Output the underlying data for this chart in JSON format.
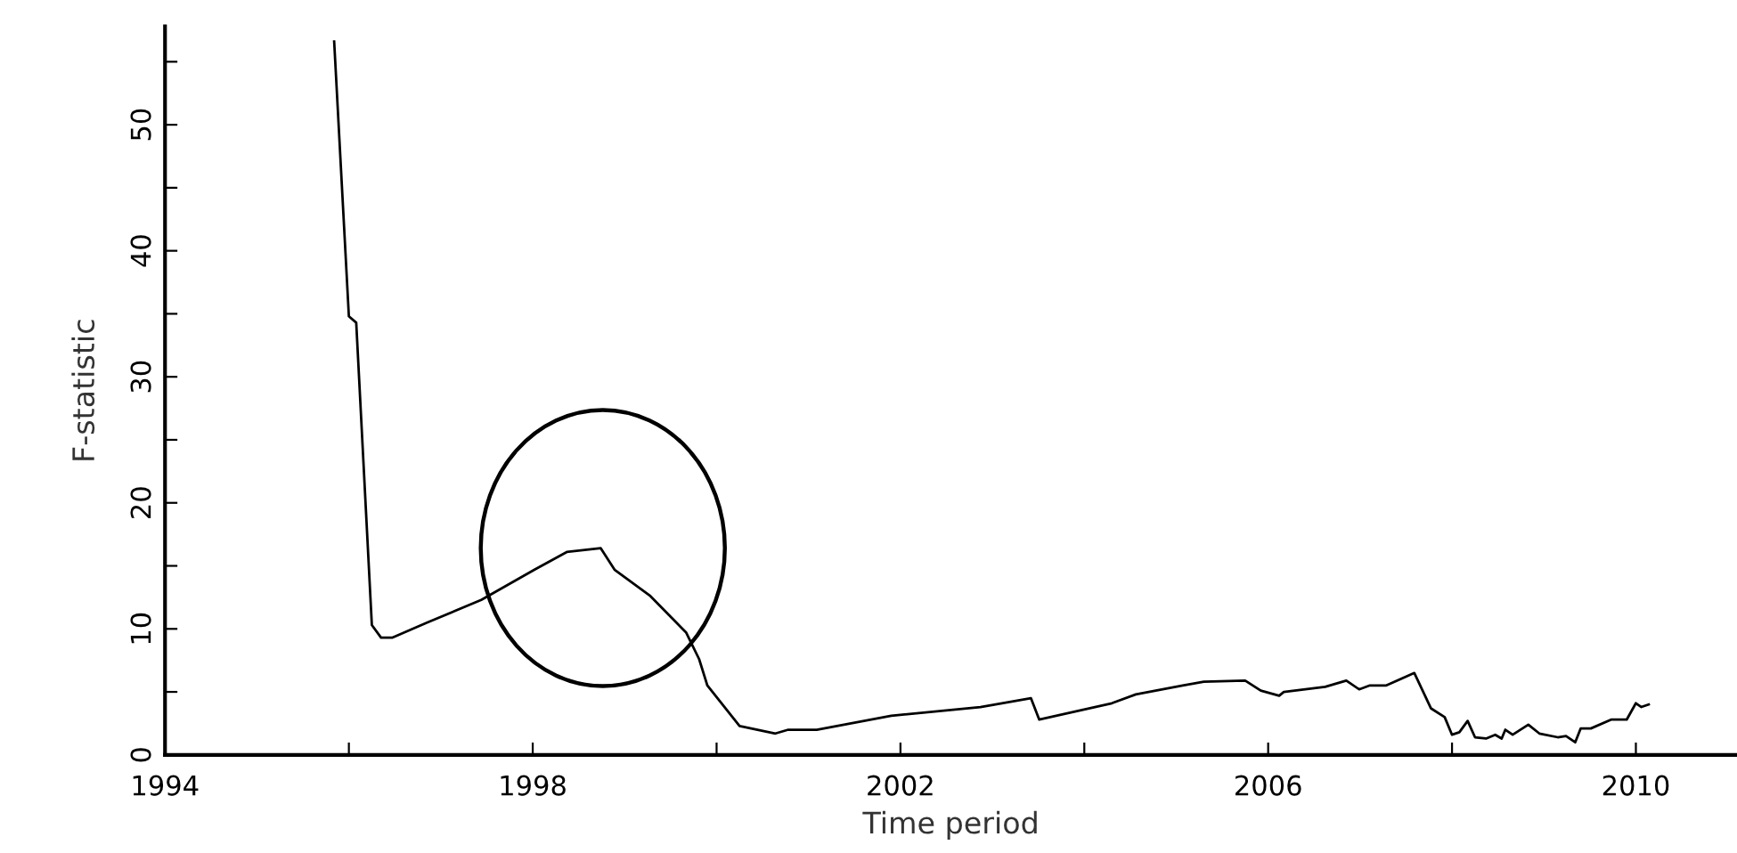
{
  "chart_data": {
    "type": "line",
    "xlabel": "Time period",
    "ylabel": "F-statistic",
    "xlim": [
      1994,
      2011.1
    ],
    "ylim": [
      0,
      57.8
    ],
    "xticks": [
      1994,
      {
        "value": 1996,
        "label": null
      },
      1998,
      {
        "value": 2000,
        "label": null
      },
      2002,
      {
        "value": 2004,
        "label": null
      },
      2006,
      {
        "value": 2008,
        "label": null
      },
      2010
    ],
    "yticks": [
      0,
      {
        "value": 5,
        "label": null
      },
      10,
      {
        "value": 15,
        "label": null
      },
      20,
      {
        "value": 25,
        "label": null
      },
      30,
      {
        "value": 35,
        "label": null
      },
      40,
      {
        "value": 45,
        "label": null
      },
      50,
      {
        "value": 55,
        "label": null
      }
    ],
    "grid": false,
    "legend": false,
    "marker": "none",
    "line_style": "solid",
    "series": [
      {
        "color": "#000000",
        "x": [
          1995.84,
          1996.0,
          1996.08,
          1996.25,
          1996.35,
          1996.47,
          1996.85,
          1997.44,
          1998.02,
          1998.37,
          1998.74,
          1998.89,
          1999.28,
          1999.67,
          1999.81,
          1999.9,
          2000.25,
          2000.64,
          2000.78,
          2001.09,
          2001.9,
          2002.87,
          2003.42,
          2003.51,
          2004.3,
          2004.56,
          2005.07,
          2005.3,
          2005.75,
          2005.92,
          2006.12,
          2006.17,
          2006.62,
          2006.85,
          2006.99,
          2007.1,
          2007.28,
          2007.59,
          2007.77,
          2007.92,
          2008.0,
          2008.08,
          2008.17,
          2008.25,
          2008.37,
          2008.47,
          2008.54,
          2008.58,
          2008.66,
          2008.83,
          2008.95,
          2009.15,
          2009.24,
          2009.34,
          2009.4,
          2009.51,
          2009.73,
          2009.9,
          2010.0,
          2010.06,
          2010.14
        ],
        "values": [
          56.6,
          34.8,
          34.3,
          10.3,
          9.3,
          9.3,
          10.5,
          12.3,
          14.7,
          16.1,
          16.4,
          14.7,
          12.6,
          9.7,
          7.6,
          5.5,
          2.3,
          1.7,
          2.0,
          2.0,
          3.1,
          3.8,
          4.5,
          2.8,
          4.1,
          4.8,
          5.5,
          5.8,
          5.9,
          5.1,
          4.7,
          5.0,
          5.4,
          5.9,
          5.2,
          5.5,
          5.5,
          6.5,
          3.7,
          3.0,
          1.6,
          1.8,
          2.7,
          1.4,
          1.3,
          1.6,
          1.3,
          2.0,
          1.6,
          2.4,
          1.7,
          1.4,
          1.5,
          1.0,
          2.1,
          2.1,
          2.8,
          2.8,
          4.1,
          3.8,
          4.0
        ]
      }
    ]
  }
}
